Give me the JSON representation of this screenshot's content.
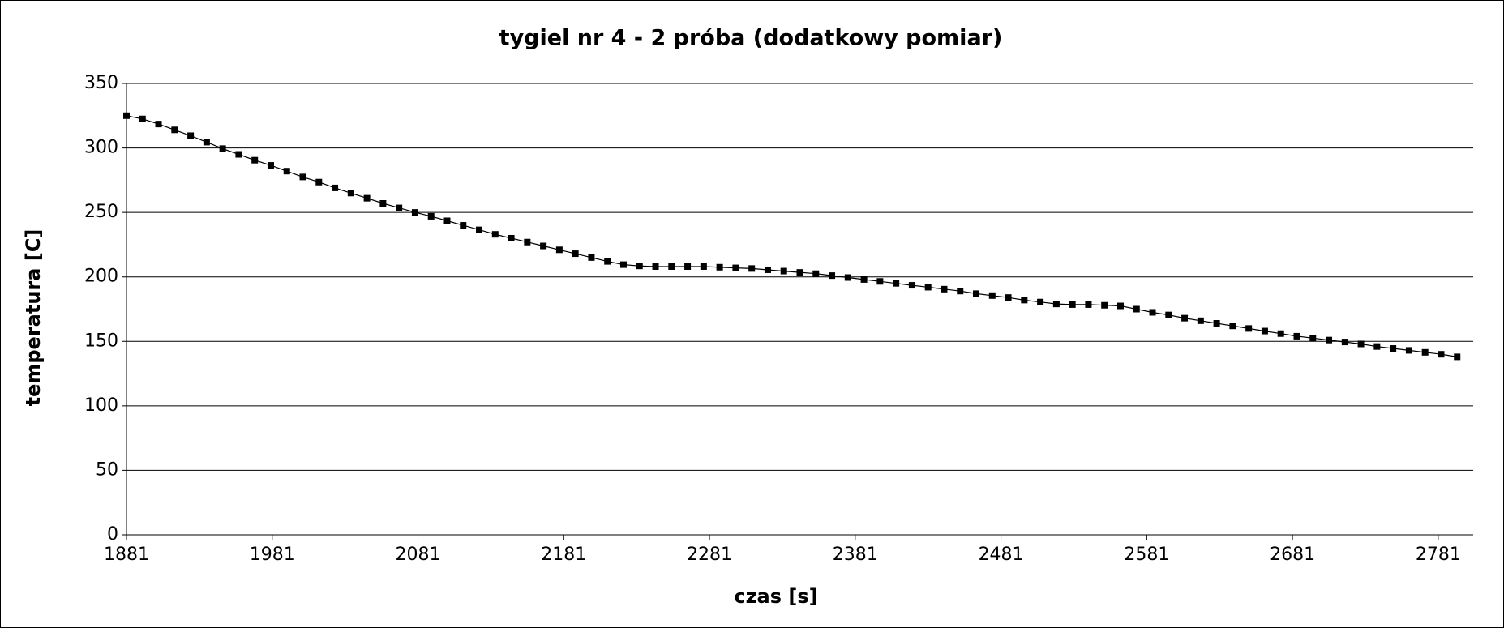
{
  "chart_data": {
    "type": "line",
    "title": "tygiel nr 4 - 2 próba  (dodatkowy pomiar)",
    "x_label": "czas [s]",
    "y_label": "temperatura [C]",
    "x": [
      1881,
      1892,
      1903,
      1914,
      1925,
      1936,
      1947,
      1958,
      1969,
      1980,
      1991,
      2002,
      2013,
      2024,
      2035,
      2046,
      2057,
      2068,
      2079,
      2090,
      2101,
      2112,
      2123,
      2134,
      2145,
      2156,
      2167,
      2178,
      2189,
      2200,
      2211,
      2222,
      2233,
      2244,
      2255,
      2266,
      2277,
      2288,
      2299,
      2310,
      2321,
      2332,
      2343,
      2354,
      2365,
      2376,
      2387,
      2398,
      2409,
      2420,
      2431,
      2442,
      2453,
      2464,
      2475,
      2486,
      2497,
      2508,
      2519,
      2530,
      2541,
      2552,
      2563,
      2574,
      2585,
      2596,
      2607,
      2618,
      2629,
      2640,
      2651,
      2662,
      2673,
      2684,
      2695,
      2706,
      2717,
      2728,
      2739,
      2750,
      2761,
      2772,
      2783,
      2794
    ],
    "series": [
      {
        "color": "#000000",
        "values": [
          325,
          322.5,
          318.5,
          314,
          309.5,
          304.5,
          299.5,
          295,
          290.5,
          286.5,
          282,
          277.5,
          273.5,
          269,
          265,
          261,
          257,
          253.5,
          250,
          247,
          243.5,
          240,
          236.5,
          233,
          230,
          227,
          224,
          221,
          218,
          215,
          212,
          209.5,
          208.5,
          208,
          208,
          208,
          208,
          207.5,
          207,
          206.5,
          205.5,
          204.5,
          203.5,
          202.5,
          201,
          199.5,
          198,
          196.5,
          195,
          193.5,
          192,
          190.5,
          189,
          187,
          185.5,
          184,
          182,
          180.5,
          179,
          178.5,
          178.5,
          178,
          177.5,
          175,
          172.5,
          170.5,
          168,
          166,
          164,
          162,
          160,
          158,
          156,
          154,
          152.5,
          151,
          149.5,
          148,
          146,
          144.5,
          143,
          141.5,
          140,
          138
        ]
      }
    ],
    "xlim": [
      1881,
      2805
    ],
    "xticks": [
      1881,
      1981,
      2081,
      2181,
      2281,
      2381,
      2481,
      2581,
      2681,
      2781
    ],
    "ylim": [
      0,
      350
    ],
    "yticks": [
      0,
      50,
      100,
      150,
      200,
      250,
      300,
      350
    ],
    "grid": true
  }
}
